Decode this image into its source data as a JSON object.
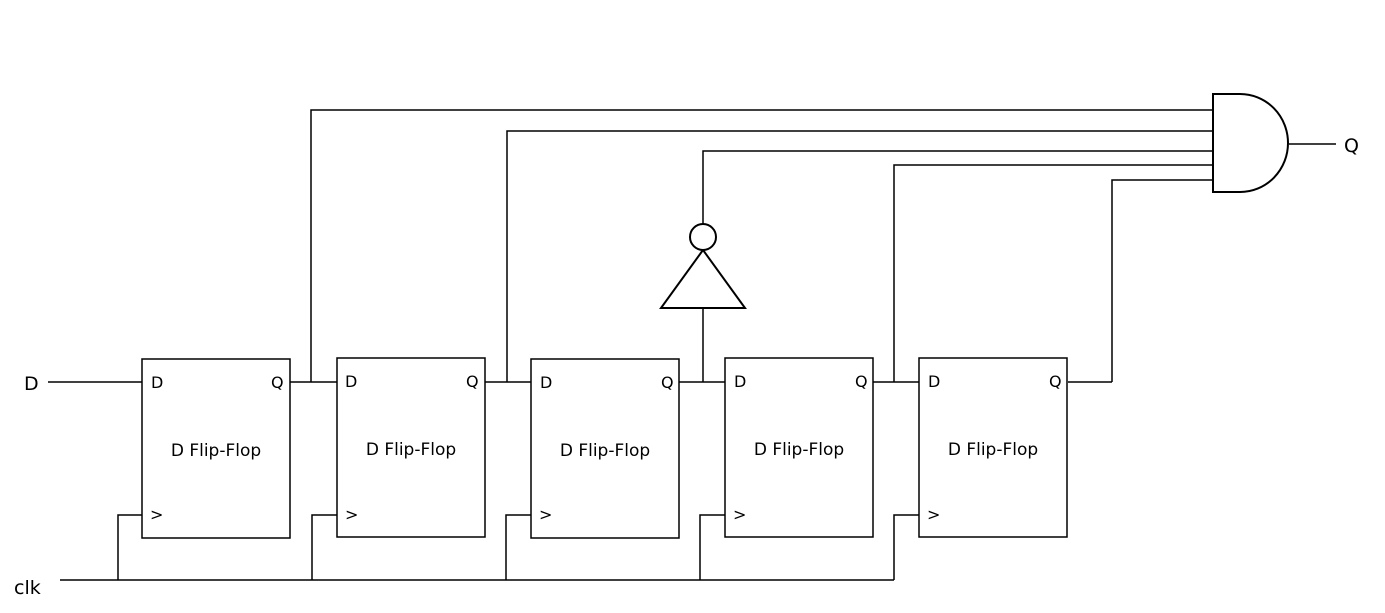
{
  "inputs": {
    "d_label": "D",
    "clk_label": "clk"
  },
  "output": {
    "q_label": "Q"
  },
  "flip_flops": [
    {
      "title": "D Flip-Flop",
      "d_pin": "D",
      "q_pin": "Q",
      "clk_pin": ">"
    },
    {
      "title": "D Flip-Flop",
      "d_pin": "D",
      "q_pin": "Q",
      "clk_pin": ">"
    },
    {
      "title": "D Flip-Flop",
      "d_pin": "D",
      "q_pin": "Q",
      "clk_pin": ">"
    },
    {
      "title": "D Flip-Flop",
      "d_pin": "D",
      "q_pin": "Q",
      "clk_pin": ">"
    },
    {
      "title": "D Flip-Flop",
      "d_pin": "D",
      "q_pin": "Q",
      "clk_pin": ">"
    }
  ],
  "gates": {
    "and_gate": "and-gate-icon",
    "not_gate": "not-gate-icon"
  }
}
